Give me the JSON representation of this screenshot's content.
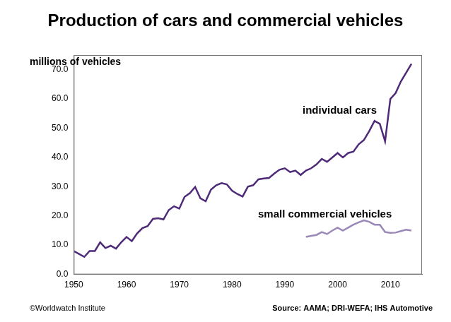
{
  "chart_data": {
    "type": "line",
    "title": "Production of cars and commercial vehicles",
    "ylabel": "millions of vehicles",
    "annotations": [
      "©Worldwatch Institute",
      "Source: AAMA; DRI-WEFA; IHS Automotive"
    ],
    "x": [
      1950,
      1951,
      1952,
      1953,
      1954,
      1955,
      1956,
      1957,
      1958,
      1959,
      1960,
      1961,
      1962,
      1963,
      1964,
      1965,
      1966,
      1967,
      1968,
      1969,
      1970,
      1971,
      1972,
      1973,
      1974,
      1975,
      1976,
      1977,
      1978,
      1979,
      1980,
      1981,
      1982,
      1983,
      1984,
      1985,
      1986,
      1987,
      1988,
      1989,
      1990,
      1991,
      1992,
      1993,
      1994,
      1995,
      1996,
      1997,
      1998,
      1999,
      2000,
      2001,
      2002,
      2003,
      2004,
      2005,
      2006,
      2007,
      2008,
      2009,
      2010,
      2011,
      2012,
      2013,
      2014
    ],
    "series": [
      {
        "name": "individual cars",
        "color": "#4e2a78",
        "values": [
          8,
          7,
          6,
          8,
          8,
          11,
          9,
          9.8,
          8.8,
          11,
          12.8,
          11.4,
          14,
          15.8,
          16.5,
          19,
          19.2,
          18.8,
          22,
          23.3,
          22.5,
          26.5,
          27.8,
          29.9,
          26,
          25,
          29,
          30.5,
          31.2,
          30.8,
          28.6,
          27.5,
          26.6,
          30,
          30.5,
          32.5,
          32.8,
          33,
          34.5,
          35.8,
          36.3,
          35,
          35.5,
          34,
          35.5,
          36.3,
          37.6,
          39.5,
          38.5,
          40,
          41.5,
          40,
          41.5,
          42,
          44.5,
          46,
          49,
          52.5,
          51.5,
          45.5,
          60,
          62,
          66,
          69,
          72
        ]
      },
      {
        "name": "small commercial vehicles",
        "color": "#9a88b8",
        "values": [
          null,
          null,
          null,
          null,
          null,
          null,
          null,
          null,
          null,
          null,
          null,
          null,
          null,
          null,
          null,
          null,
          null,
          null,
          null,
          null,
          null,
          null,
          null,
          null,
          null,
          null,
          null,
          null,
          null,
          null,
          null,
          null,
          null,
          null,
          null,
          null,
          null,
          null,
          null,
          null,
          null,
          null,
          null,
          null,
          12.8,
          13.2,
          13.5,
          14.5,
          13.8,
          15,
          16,
          15,
          16,
          17,
          17.8,
          18.5,
          18,
          17,
          17,
          14.5,
          14.2,
          14.3,
          14.8,
          15.3,
          15
        ]
      }
    ],
    "xlim": [
      1950,
      2016
    ],
    "xticks": [
      1950,
      1960,
      1970,
      1980,
      1990,
      2000,
      2010
    ],
    "ylim": [
      0,
      75
    ],
    "yticks": [
      {
        "value": 0,
        "label": "0.0"
      },
      {
        "value": 10,
        "label": "10.0"
      },
      {
        "value": 20,
        "label": "20.0"
      },
      {
        "value": 30,
        "label": "30.0"
      },
      {
        "value": 40,
        "label": "40.0"
      },
      {
        "value": 50,
        "label": "50.0"
      },
      {
        "value": 60,
        "label": "60.0"
      },
      {
        "value": 70,
        "label": "70.0"
      }
    ],
    "grid": false
  }
}
